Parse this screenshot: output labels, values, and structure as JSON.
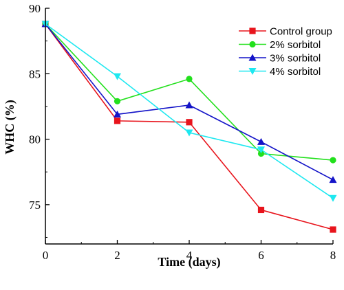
{
  "chart_data": {
    "type": "line",
    "xlabel": "Time (days)",
    "ylabel": "WHC (%)",
    "xlim": [
      0,
      8
    ],
    "ylim": [
      72,
      90
    ],
    "xticks": [
      0,
      2,
      4,
      6,
      8
    ],
    "yticks": [
      75,
      80,
      85,
      90
    ],
    "grid": false,
    "legend_position": "top-right",
    "x": [
      0,
      2,
      4,
      6,
      8
    ],
    "series": [
      {
        "name": "Control group",
        "color": "#e8141c",
        "marker": "square",
        "values": [
          88.8,
          81.4,
          81.3,
          74.6,
          73.1
        ]
      },
      {
        "name": "2% sorbitol",
        "color": "#22e01c",
        "marker": "circle",
        "values": [
          88.8,
          82.9,
          84.6,
          78.9,
          78.4
        ]
      },
      {
        "name": "3% sorbitol",
        "color": "#1414c8",
        "marker": "triangle-up",
        "values": [
          88.8,
          81.9,
          82.6,
          79.8,
          76.9
        ]
      },
      {
        "name": "4% sorbitol",
        "color": "#1ee8f0",
        "marker": "triangle-down",
        "values": [
          88.8,
          84.8,
          80.5,
          79.2,
          75.5
        ]
      }
    ]
  }
}
